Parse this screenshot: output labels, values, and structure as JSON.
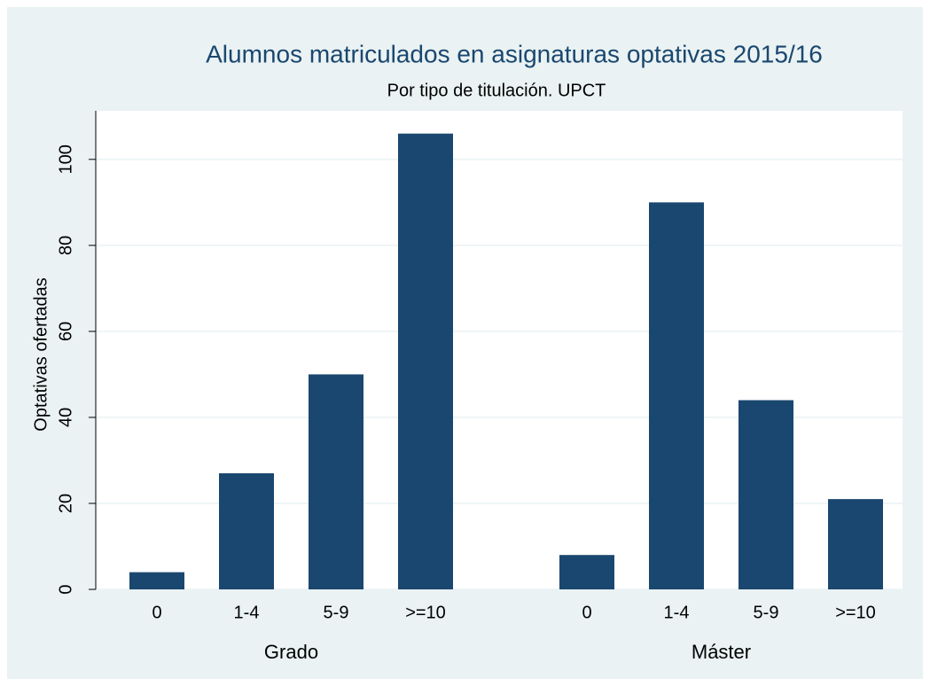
{
  "chart_data": {
    "type": "bar",
    "title": "Alumnos matriculados en asignaturas optativas 2015/16",
    "subtitle": "Por tipo de titulación. UPCT",
    "y_label": "Optativas ofertadas",
    "color": "#1a476f",
    "grid": true,
    "ylim": [
      0,
      111.3
    ],
    "yticks": [
      0,
      20,
      40,
      60,
      80,
      100
    ],
    "groups": [
      {
        "name": "Grado",
        "categories": [
          "0",
          "1-4",
          "5-9",
          ">=10"
        ],
        "values": [
          4,
          27,
          50,
          106
        ]
      },
      {
        "name": "Máster",
        "categories": [
          "0",
          "1-4",
          "5-9",
          ">=10"
        ],
        "values": [
          8,
          90,
          44,
          21
        ]
      }
    ]
  }
}
